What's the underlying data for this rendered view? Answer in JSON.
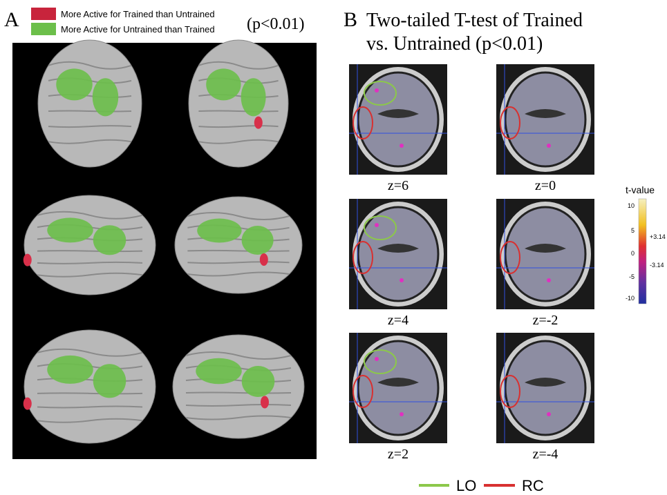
{
  "panel_a": {
    "label": "A",
    "legend": [
      "More Active for Trained than Untrained",
      "More Active for Untrained than Trained"
    ],
    "threshold": "(p<0.01)"
  },
  "panel_b": {
    "label": "B",
    "title_lines": [
      "Two-tailed T-test of Trained",
      "vs. Untrained (p<0.01)"
    ],
    "slices": [
      "z=6",
      "z=0",
      "z=4",
      "z=-2",
      "z=2",
      "z=-4"
    ],
    "colorbar": {
      "title": "t-value",
      "ticks": [
        "10",
        "5",
        "+3.14",
        "0",
        "-3.14",
        "-5",
        "-10"
      ]
    }
  },
  "legend": [
    "LO",
    "RC"
  ]
}
